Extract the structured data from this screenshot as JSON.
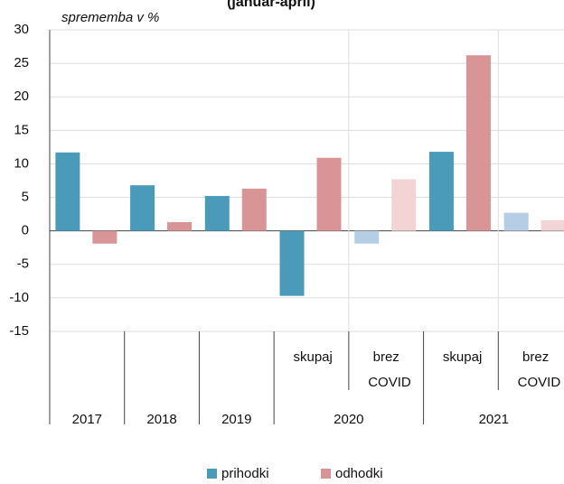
{
  "chart_data": {
    "type": "bar",
    "title": "(januar-april)",
    "y_axis_label": "sprememba v %",
    "category_groups": [
      {
        "label": "2017",
        "span": 1
      },
      {
        "label": "2018",
        "span": 1
      },
      {
        "label": "2019",
        "span": 1
      },
      {
        "label": "2020",
        "span": 2
      },
      {
        "label": "2021",
        "span": 2
      }
    ],
    "categories": [
      null,
      null,
      null,
      "skupaj",
      "brez COVID",
      "skupaj",
      "brez COVID"
    ],
    "series": [
      {
        "name": "prihodki",
        "color": "#4a9bb9",
        "colors": [
          "#4a9bb9",
          "#4a9bb9",
          "#4a9bb9",
          "#4a9bb9",
          "#b6cde6",
          "#4a9bb9",
          "#b6cde6"
        ],
        "values": [
          11.7,
          6.8,
          5.2,
          -9.7,
          -1.9,
          11.8,
          2.7
        ]
      },
      {
        "name": "odhodki",
        "color": "#d99596",
        "colors": [
          "#d99596",
          "#d99596",
          "#d99596",
          "#d99596",
          "#f2d4d4",
          "#d99596",
          "#f2d4d4"
        ],
        "values": [
          -1.9,
          1.3,
          6.3,
          10.9,
          7.7,
          26.2,
          1.6
        ]
      }
    ],
    "ylim": [
      -15,
      30
    ],
    "yticks": [
      -15,
      -10,
      -5,
      0,
      5,
      10,
      15,
      20,
      25,
      30
    ],
    "grid": true,
    "legend": "bottom"
  }
}
